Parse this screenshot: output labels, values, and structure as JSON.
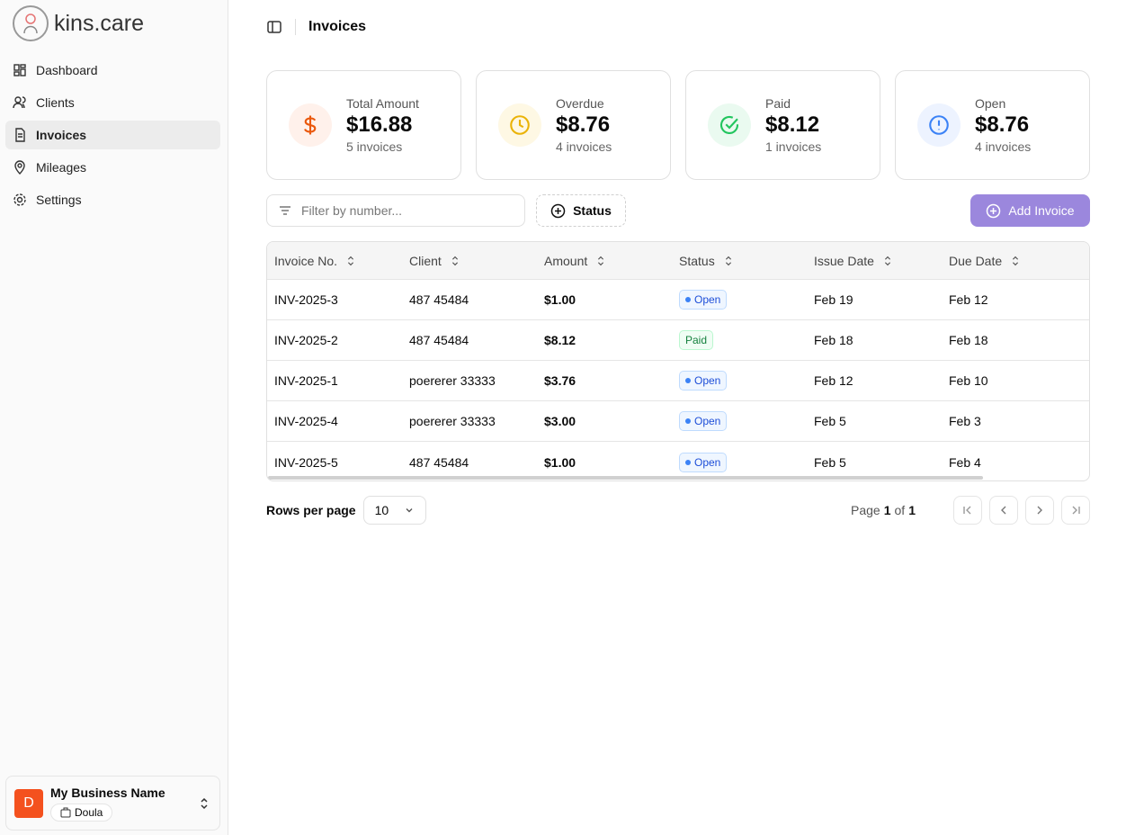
{
  "sidebar": {
    "brand": "kins.care",
    "nav": [
      "Dashboard",
      "Clients",
      "Invoices",
      "Mileages",
      "Settings"
    ],
    "business": {
      "avatar": "D",
      "name": "My Business Name",
      "role": "Doula"
    }
  },
  "header": {
    "title": "Invoices"
  },
  "cards": [
    {
      "label": "Total Amount",
      "amount": "$16.88",
      "count": "5 invoices"
    },
    {
      "label": "Overdue",
      "amount": "$8.76",
      "count": "4 invoices"
    },
    {
      "label": "Paid",
      "amount": "$8.12",
      "count": "1 invoices"
    },
    {
      "label": "Open",
      "amount": "$8.76",
      "count": "4 invoices"
    }
  ],
  "toolbar": {
    "filter_placeholder": "Filter by number...",
    "status_filter": "Status",
    "add_button": "Add Invoice"
  },
  "table": {
    "columns": [
      "Invoice No.",
      "Client",
      "Amount",
      "Status",
      "Issue Date",
      "Due Date"
    ],
    "rows": [
      [
        "INV-2025-3",
        "487 45484",
        "$1.00",
        "Open",
        "Feb 19",
        "Feb 12"
      ],
      [
        "INV-2025-2",
        "487 45484",
        "$8.12",
        "Paid",
        "Feb 18",
        "Feb 18"
      ],
      [
        "INV-2025-1",
        "poererer 33333",
        "$3.76",
        "Open",
        "Feb 12",
        "Feb 10"
      ],
      [
        "INV-2025-4",
        "poererer 33333",
        "$3.00",
        "Open",
        "Feb 5",
        "Feb 3"
      ],
      [
        "INV-2025-5",
        "487 45484",
        "$1.00",
        "Open",
        "Feb 5",
        "Feb 4"
      ]
    ]
  },
  "pagination": {
    "rows_per_page_label": "Rows per page",
    "rows_per_page": "10",
    "page_label": "Page",
    "page": "1",
    "of_label": "of",
    "total_pages": "1"
  }
}
